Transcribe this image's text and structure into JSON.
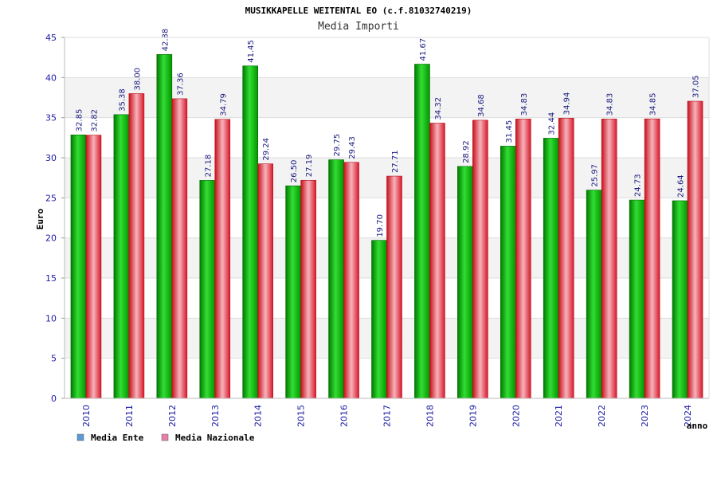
{
  "chart_data": {
    "type": "bar",
    "title": "MUSIKKAPELLE WEITENTAL EO (c.f.81032740219)",
    "subtitle": "Media Importi",
    "xlabel": "anno",
    "ylabel": "Euro",
    "ylim": [
      0,
      45
    ],
    "yticks": [
      0,
      5,
      10,
      15,
      20,
      25,
      30,
      35,
      40,
      45
    ],
    "categories": [
      "2010",
      "2011",
      "2012",
      "2013",
      "2014",
      "2015",
      "2016",
      "2017",
      "2018",
      "2019",
      "2020",
      "2021",
      "2022",
      "2023",
      "2024"
    ],
    "series": [
      {
        "name": "Media Ente",
        "color": "#00b800",
        "legend_color": "#5b9bd5",
        "values": [
          32.85,
          35.38,
          42.88,
          27.18,
          41.45,
          26.5,
          29.75,
          19.7,
          41.67,
          28.92,
          31.45,
          32.44,
          25.97,
          24.73,
          24.64
        ],
        "labels": [
          "32.85",
          "35.38",
          "42.88",
          "27.18",
          "41.45",
          "26.50",
          "29.75",
          "19.70",
          "41.67",
          "28.92",
          "31.45",
          "32.44",
          "25.97",
          "24.73",
          "24.64"
        ]
      },
      {
        "name": "Media Nazionale",
        "color": "#e8202a",
        "legend_color": "#e87fa8",
        "values": [
          32.82,
          38.0,
          37.36,
          34.79,
          29.24,
          27.19,
          29.43,
          27.71,
          34.32,
          34.68,
          34.83,
          34.94,
          34.83,
          34.85,
          37.05
        ],
        "labels": [
          "32.82",
          "38.00",
          "37.36",
          "34.79",
          "29.24",
          "27.19",
          "29.43",
          "27.71",
          "34.32",
          "34.68",
          "34.83",
          "34.94",
          "34.83",
          "34.85",
          "37.05"
        ]
      }
    ],
    "grid": true,
    "legend_position": "bottom-left"
  }
}
